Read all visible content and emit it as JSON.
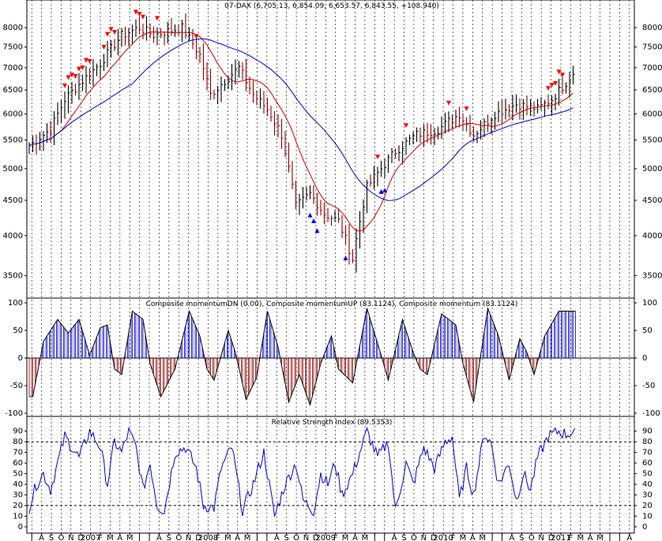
{
  "chart_data": [
    {
      "type": "ohlc",
      "title": "07-DAX (6,705.13, 6,854.09, 6,653.57, 6,843.55, +108.940)",
      "y_axis": {
        "scale": "log",
        "ylim": [
          3300,
          8500
        ],
        "ticks": [
          3500,
          4000,
          4500,
          5000,
          5500,
          6000,
          6500,
          7000,
          7500,
          8000
        ]
      },
      "x_axis_labels": [
        "J",
        "A",
        "S",
        "O",
        "N",
        "D",
        "2007",
        "F",
        "M",
        "A",
        "M",
        "J",
        "J",
        "A",
        "S",
        "O",
        "N",
        "D",
        "2008",
        "F",
        "M",
        "A",
        "M",
        "J",
        "J",
        "A",
        "S",
        "O",
        "N",
        "D",
        "2009",
        "F",
        "M",
        "A",
        "M",
        "J",
        "J",
        "A",
        "S",
        "O",
        "N",
        "D",
        "2010",
        "F",
        "M",
        "A",
        "M",
        "J",
        "J",
        "A",
        "S",
        "O",
        "N",
        "D",
        "2011",
        "F",
        "M",
        "A",
        "M",
        "J",
        "J",
        "A"
      ],
      "price_keyframes": [
        [
          0,
          5400
        ],
        [
          6,
          5700
        ],
        [
          10,
          6300
        ],
        [
          20,
          7100
        ],
        [
          26,
          7800
        ],
        [
          31,
          8000
        ],
        [
          35,
          7800
        ],
        [
          43,
          8000
        ],
        [
          48,
          7300
        ],
        [
          51,
          6400
        ],
        [
          55,
          6700
        ],
        [
          59,
          7000
        ],
        [
          63,
          6400
        ],
        [
          67,
          6100
        ],
        [
          71,
          5600
        ],
        [
          75,
          4400
        ],
        [
          79,
          4600
        ],
        [
          83,
          4300
        ],
        [
          87,
          4200
        ],
        [
          91,
          3700
        ],
        [
          95,
          4700
        ],
        [
          99,
          5000
        ],
        [
          103,
          5300
        ],
        [
          109,
          5600
        ],
        [
          115,
          5700
        ],
        [
          121,
          6000
        ],
        [
          125,
          5600
        ],
        [
          131,
          6000
        ],
        [
          137,
          6200
        ],
        [
          143,
          6100
        ],
        [
          147,
          6300
        ],
        [
          153,
          6843.55
        ]
      ],
      "buy_signals_idx": [
        79,
        80,
        81,
        89,
        99,
        100
      ],
      "sell_signals_idx": [
        10,
        11,
        12,
        13,
        14,
        15,
        16,
        17,
        21,
        22,
        23,
        24,
        30,
        31,
        32,
        36,
        47,
        98,
        106,
        118,
        123,
        146,
        147,
        148,
        149,
        150
      ],
      "ma_lengths": [
        10,
        30
      ],
      "colors": {
        "bar_up": "#000000",
        "bar_down": "#8b0000",
        "ma_short": "#cc0000",
        "ma_long": "#0000cc",
        "sell_arrow": "#ff0000",
        "buy_arrow": "#0000ff"
      }
    },
    {
      "type": "oscillator-histogram",
      "title": "Composite momentumDN (0.00), Composite momentumUP (83.1124), Composite momentum (83.1124)",
      "ylim": [
        -100,
        100
      ],
      "ticks": [
        100,
        50,
        0,
        -50,
        -100
      ],
      "wave_keyframes": [
        [
          0,
          -70
        ],
        [
          1,
          -70
        ],
        [
          4,
          30
        ],
        [
          8,
          70
        ],
        [
          11,
          45
        ],
        [
          14,
          70
        ],
        [
          17,
          5
        ],
        [
          20,
          55
        ],
        [
          22,
          60
        ],
        [
          24,
          -20
        ],
        [
          26,
          -30
        ],
        [
          29,
          85
        ],
        [
          32,
          70
        ],
        [
          34,
          -10
        ],
        [
          37,
          -70
        ],
        [
          41,
          -20
        ],
        [
          45,
          85
        ],
        [
          48,
          40
        ],
        [
          50,
          -20
        ],
        [
          52,
          -40
        ],
        [
          56,
          50
        ],
        [
          58,
          10
        ],
        [
          61,
          -75
        ],
        [
          64,
          -35
        ],
        [
          67,
          85
        ],
        [
          70,
          20
        ],
        [
          73,
          -80
        ],
        [
          76,
          -30
        ],
        [
          79,
          -85
        ],
        [
          82,
          -10
        ],
        [
          85,
          40
        ],
        [
          87,
          -20
        ],
        [
          91,
          -45
        ],
        [
          95,
          90
        ],
        [
          99,
          5
        ],
        [
          101,
          -40
        ],
        [
          105,
          70
        ],
        [
          108,
          10
        ],
        [
          110,
          -20
        ],
        [
          112,
          -30
        ],
        [
          116,
          80
        ],
        [
          120,
          60
        ],
        [
          122,
          -10
        ],
        [
          125,
          -80
        ],
        [
          129,
          90
        ],
        [
          132,
          40
        ],
        [
          135,
          -40
        ],
        [
          138,
          35
        ],
        [
          140,
          10
        ],
        [
          142,
          -30
        ],
        [
          145,
          40
        ],
        [
          149,
          85
        ],
        [
          153,
          85
        ]
      ],
      "colors": {
        "positive": "#0000cc",
        "negative": "#8b0000",
        "outline": "#000000"
      }
    },
    {
      "type": "line",
      "title": "Relative Strength Index (89.5353)",
      "ylim": [
        0,
        95
      ],
      "ticks": [
        90,
        80,
        70,
        60,
        50,
        40,
        30,
        20,
        10,
        0
      ],
      "reference_levels": [
        80,
        20
      ],
      "rsi_keyframes": [
        [
          0,
          18
        ],
        [
          2,
          40
        ],
        [
          4,
          50
        ],
        [
          6,
          35
        ],
        [
          10,
          85
        ],
        [
          14,
          65
        ],
        [
          17,
          90
        ],
        [
          20,
          75
        ],
        [
          22,
          40
        ],
        [
          24,
          80
        ],
        [
          26,
          70
        ],
        [
          28,
          90
        ],
        [
          30,
          75
        ],
        [
          32,
          35
        ],
        [
          34,
          60
        ],
        [
          36,
          20
        ],
        [
          38,
          15
        ],
        [
          41,
          70
        ],
        [
          44,
          75
        ],
        [
          47,
          55
        ],
        [
          49,
          20
        ],
        [
          52,
          18
        ],
        [
          54,
          55
        ],
        [
          57,
          75
        ],
        [
          60,
          15
        ],
        [
          63,
          40
        ],
        [
          66,
          70
        ],
        [
          69,
          10
        ],
        [
          72,
          40
        ],
        [
          75,
          60
        ],
        [
          77,
          25
        ],
        [
          80,
          15
        ],
        [
          82,
          50
        ],
        [
          84,
          40
        ],
        [
          86,
          60
        ],
        [
          88,
          30
        ],
        [
          91,
          50
        ],
        [
          95,
          90
        ],
        [
          98,
          65
        ],
        [
          101,
          80
        ],
        [
          103,
          15
        ],
        [
          106,
          60
        ],
        [
          108,
          40
        ],
        [
          111,
          75
        ],
        [
          114,
          55
        ],
        [
          117,
          80
        ],
        [
          119,
          85
        ],
        [
          121,
          25
        ],
        [
          123,
          55
        ],
        [
          125,
          30
        ],
        [
          128,
          88
        ],
        [
          130,
          78
        ],
        [
          132,
          40
        ],
        [
          135,
          60
        ],
        [
          137,
          25
        ],
        [
          139,
          50
        ],
        [
          141,
          35
        ],
        [
          143,
          65
        ],
        [
          146,
          85
        ],
        [
          149,
          90
        ],
        [
          151,
          87
        ],
        [
          153,
          89.5
        ]
      ],
      "colors": {
        "line": "#0000cc",
        "reference": "#000000"
      }
    }
  ]
}
